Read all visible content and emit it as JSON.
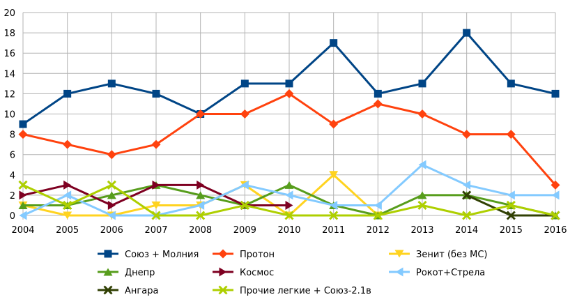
{
  "chart_data": {
    "type": "line",
    "x": [
      "2004",
      "2005",
      "2006",
      "2007",
      "2008",
      "2009",
      "2010",
      "2011",
      "2012",
      "2013",
      "2014",
      "2015",
      "2016"
    ],
    "ylim": [
      0,
      20
    ],
    "yticks": [
      0,
      2,
      4,
      6,
      8,
      10,
      12,
      14,
      16,
      18,
      20
    ],
    "grid": true,
    "legend_position": "bottom",
    "series": [
      {
        "name": "Союз + Молния",
        "color": "#004586",
        "marker": "square",
        "values": [
          9,
          12,
          13,
          12,
          10,
          13,
          13,
          17,
          12,
          13,
          18,
          13,
          12
        ]
      },
      {
        "name": "Протон",
        "color": "#ff420e",
        "marker": "diamond",
        "values": [
          8,
          7,
          6,
          7,
          10,
          10,
          12,
          9,
          11,
          10,
          8,
          8,
          3
        ]
      },
      {
        "name": "Зенит (без МС)",
        "color": "#ffd320",
        "marker": "triangle-down",
        "values": [
          1,
          0,
          0,
          1,
          1,
          3,
          0,
          4,
          0,
          null,
          null,
          null,
          null
        ]
      },
      {
        "name": "Днепр",
        "color": "#579d1c",
        "marker": "triangle-up",
        "values": [
          1,
          1,
          2,
          3,
          2,
          1,
          3,
          1,
          0,
          2,
          2,
          1,
          0
        ]
      },
      {
        "name": "Космос",
        "color": "#7e0021",
        "marker": "triangle-right",
        "values": [
          2,
          3,
          1,
          3,
          3,
          1,
          1,
          null,
          null,
          null,
          null,
          null,
          null
        ]
      },
      {
        "name": "Рокот+Стрела",
        "color": "#83caff",
        "marker": "triangle-left",
        "values": [
          0,
          2,
          0,
          0,
          1,
          3,
          2,
          1,
          1,
          5,
          3,
          2,
          2
        ]
      },
      {
        "name": "Ангара",
        "color": "#314004",
        "marker": "x",
        "values": [
          null,
          null,
          null,
          null,
          null,
          null,
          null,
          null,
          null,
          null,
          2,
          0,
          0
        ]
      },
      {
        "name": "Прочие легкие + Союз-2.1в",
        "color": "#aecf00",
        "marker": "x",
        "values": [
          3,
          1,
          3,
          0,
          0,
          1,
          0,
          0,
          0,
          1,
          0,
          1,
          0
        ]
      }
    ]
  }
}
